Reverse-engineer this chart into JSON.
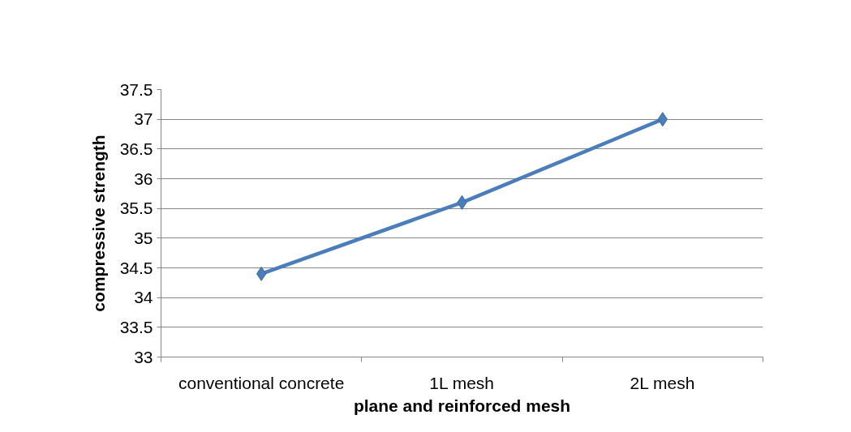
{
  "chart_data": {
    "type": "line",
    "xlabel": "plane and reinforced mesh",
    "ylabel": "compressive strength",
    "categories": [
      "conventional concrete",
      "1L mesh",
      "2L mesh"
    ],
    "series": [
      {
        "color": "#4a7ebb",
        "values": [
          34.4,
          35.6,
          37.0
        ]
      }
    ],
    "ylim": [
      33,
      37.5
    ],
    "yticks": [
      33,
      33.5,
      34,
      34.5,
      35,
      35.5,
      36,
      36.5,
      37,
      37.5
    ],
    "grid": "y",
    "marker": "diamond",
    "line_style": "solid"
  }
}
